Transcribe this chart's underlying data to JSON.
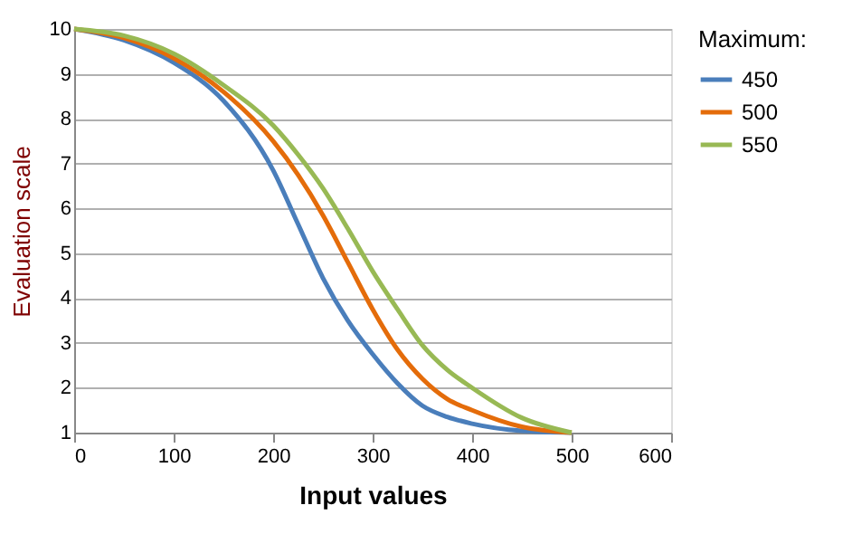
{
  "chart_data": {
    "type": "line",
    "xlabel": "Input values",
    "ylabel": "Evaluation scale",
    "legend_title": "Maximum:",
    "x": [
      0,
      50,
      100,
      150,
      200,
      225,
      250,
      275,
      300,
      325,
      350,
      375,
      400,
      450,
      500
    ],
    "series": [
      {
        "name": "450",
        "color": "#4a7ebb",
        "values": [
          10,
          9.75,
          9.25,
          8.4,
          6.85,
          5.65,
          4.45,
          3.5,
          2.75,
          2.1,
          1.6,
          1.35,
          1.2,
          1.04,
          1
        ]
      },
      {
        "name": "500",
        "color": "#e46c0a",
        "values": [
          10,
          9.8,
          9.35,
          8.6,
          7.5,
          6.75,
          5.85,
          4.8,
          3.75,
          2.85,
          2.2,
          1.75,
          1.5,
          1.13,
          1
        ]
      },
      {
        "name": "550",
        "color": "#98b954",
        "values": [
          10,
          9.85,
          9.45,
          8.75,
          7.85,
          7.2,
          6.45,
          5.55,
          4.6,
          3.75,
          2.95,
          2.4,
          2.0,
          1.33,
          1
        ]
      }
    ],
    "xlim": [
      0,
      600
    ],
    "xticks": [
      0,
      100,
      200,
      300,
      400,
      500,
      600
    ],
    "ylim": [
      1,
      10
    ],
    "yticks": [
      1,
      2,
      3,
      4,
      5,
      6,
      7,
      8,
      9,
      10
    ],
    "grid": "y",
    "legend": "right",
    "marker": "none",
    "line_style": "solid"
  }
}
